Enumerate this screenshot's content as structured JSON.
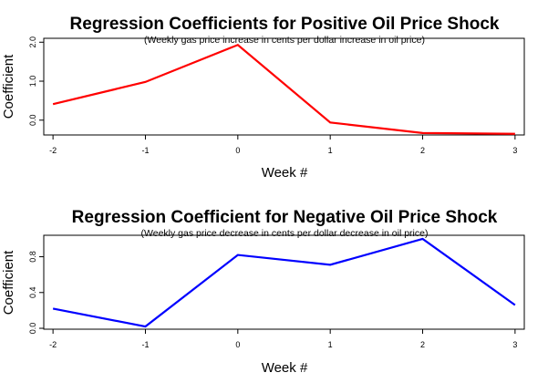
{
  "chart_data": [
    {
      "type": "line",
      "title": "Regression Coefficients for Positive Oil Price Shock",
      "subtitle": "(Weekly gas price increase in cents per dollar increase in oil price)",
      "xlabel": "Week #",
      "ylabel": "Coefficient",
      "x": [
        -2,
        -1,
        0,
        1,
        2,
        3
      ],
      "x_tick_labels": [
        "-2",
        "-1",
        "0",
        "1",
        "2",
        "3"
      ],
      "y_ticks": [
        0,
        1,
        2
      ],
      "y_tick_labels": [
        "0.0",
        "1.0",
        "2.0"
      ],
      "ylim": [
        -0.38,
        2.1
      ],
      "xlim": [
        -2.1,
        3.1
      ],
      "series": [
        {
          "values": [
            0.41,
            0.98,
            1.93,
            -0.06,
            -0.33,
            -0.35
          ],
          "color": "#ff0000"
        }
      ],
      "grid": false
    },
    {
      "type": "line",
      "title": "Regression Coefficient for Negative Oil Price Shock",
      "subtitle": "(Weekly gas price decrease in cents per dollar decrease in oil price)",
      "xlabel": "Week #",
      "ylabel": "Coefficient",
      "x": [
        -2,
        -1,
        0,
        1,
        2,
        3
      ],
      "x_tick_labels": [
        "-2",
        "-1",
        "0",
        "1",
        "2",
        "3"
      ],
      "y_ticks": [
        0.0,
        0.4,
        0.8
      ],
      "y_tick_labels": [
        "0.0",
        "0.4",
        "0.8"
      ],
      "ylim": [
        -0.01,
        1.04
      ],
      "xlim": [
        -2.1,
        3.1
      ],
      "series": [
        {
          "values": [
            0.22,
            0.02,
            0.82,
            0.71,
            1.0,
            0.26
          ],
          "color": "#0000ff"
        }
      ],
      "grid": false
    }
  ]
}
